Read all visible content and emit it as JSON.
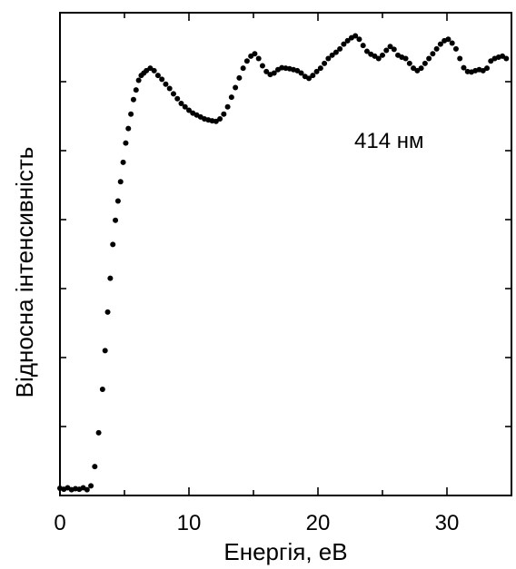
{
  "chart_data": {
    "type": "scatter",
    "title": "",
    "xlabel": "Енергія, еВ",
    "ylabel": "Відносна інтенсивність",
    "xlim": [
      0,
      35
    ],
    "ylim": [
      0,
      1
    ],
    "x_ticks": [
      0,
      10,
      20,
      30
    ],
    "x_tick_labels": [
      "0",
      "10",
      "20",
      "30"
    ],
    "y_tick_labels_shown": false,
    "grid": false,
    "legend": "none",
    "annotation": "414 нм",
    "marker_color": "#000000",
    "series": [
      {
        "x": [
          0.0,
          0.3,
          0.6,
          0.9,
          1.2,
          1.5,
          1.8,
          2.1,
          2.4,
          2.7,
          3.0,
          3.3,
          3.5,
          3.7,
          3.9,
          4.1,
          4.3,
          4.5,
          4.7,
          4.9,
          5.1,
          5.3,
          5.5,
          5.7,
          5.9,
          6.1,
          6.3,
          6.5,
          6.7,
          7.0,
          7.3,
          7.6,
          7.9,
          8.2,
          8.5,
          8.8,
          9.1,
          9.4,
          9.7,
          10.0,
          10.3,
          10.6,
          10.9,
          11.2,
          11.5,
          11.8,
          12.1,
          12.4,
          12.7,
          13.0,
          13.3,
          13.6,
          13.9,
          14.2,
          14.5,
          14.8,
          15.1,
          15.4,
          15.7,
          16.0,
          16.3,
          16.6,
          16.9,
          17.2,
          17.5,
          17.8,
          18.1,
          18.4,
          18.7,
          19.0,
          19.3,
          19.6,
          19.9,
          20.2,
          20.5,
          20.8,
          21.1,
          21.4,
          21.7,
          22.0,
          22.3,
          22.6,
          22.9,
          23.2,
          23.5,
          23.8,
          24.1,
          24.4,
          24.7,
          25.0,
          25.3,
          25.6,
          25.9,
          26.2,
          26.5,
          26.8,
          27.1,
          27.4,
          27.7,
          28.0,
          28.3,
          28.6,
          28.9,
          29.2,
          29.5,
          29.8,
          30.1,
          30.4,
          30.7,
          31.0,
          31.3,
          31.6,
          31.9,
          32.2,
          32.5,
          32.8,
          33.1,
          33.4,
          33.7,
          34.0,
          34.3,
          34.6
        ],
        "y": [
          0.015,
          0.013,
          0.016,
          0.012,
          0.014,
          0.013,
          0.016,
          0.012,
          0.02,
          0.06,
          0.13,
          0.22,
          0.3,
          0.38,
          0.45,
          0.52,
          0.57,
          0.61,
          0.65,
          0.69,
          0.73,
          0.76,
          0.79,
          0.82,
          0.84,
          0.86,
          0.87,
          0.875,
          0.88,
          0.885,
          0.88,
          0.87,
          0.862,
          0.852,
          0.843,
          0.832,
          0.822,
          0.812,
          0.805,
          0.798,
          0.792,
          0.788,
          0.784,
          0.78,
          0.778,
          0.776,
          0.775,
          0.78,
          0.79,
          0.805,
          0.825,
          0.845,
          0.865,
          0.885,
          0.9,
          0.91,
          0.915,
          0.905,
          0.89,
          0.878,
          0.872,
          0.875,
          0.882,
          0.886,
          0.885,
          0.884,
          0.882,
          0.88,
          0.875,
          0.868,
          0.864,
          0.87,
          0.878,
          0.885,
          0.895,
          0.905,
          0.912,
          0.918,
          0.925,
          0.935,
          0.942,
          0.948,
          0.952,
          0.945,
          0.932,
          0.92,
          0.914,
          0.91,
          0.905,
          0.912,
          0.922,
          0.93,
          0.924,
          0.912,
          0.908,
          0.905,
          0.895,
          0.885,
          0.88,
          0.885,
          0.895,
          0.905,
          0.915,
          0.925,
          0.935,
          0.942,
          0.945,
          0.937,
          0.925,
          0.905,
          0.886,
          0.878,
          0.877,
          0.88,
          0.882,
          0.88,
          0.885,
          0.9,
          0.905,
          0.908,
          0.91,
          0.905
        ]
      }
    ]
  }
}
